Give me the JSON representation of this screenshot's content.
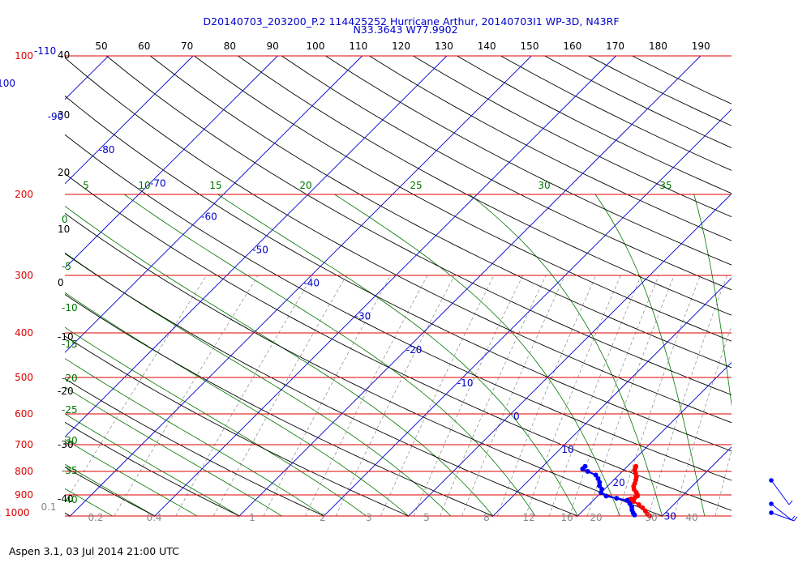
{
  "chart_data": {
    "type": "line",
    "subtype": "skew-T log-P thermodynamic diagram",
    "title_line1": "D20140703_203200_P.2 114425252 Hurricane Arthur, 20140703I1 WP-3D, N43RF",
    "title_line2": "N33.3643 W77.9902",
    "footer": "Aspen 3.1, 03 Jul 2014  21:00 UTC",
    "pressure_levels": [
      100,
      200,
      300,
      400,
      500,
      600,
      700,
      800,
      900,
      1000
    ],
    "pressure_extra_label": "-110",
    "top_temperature_ticks": [
      "50",
      "60",
      "70",
      "80",
      "90",
      "100",
      "110",
      "120",
      "130",
      "140",
      "150",
      "160",
      "170",
      "180",
      "190"
    ],
    "left_temperature_labels": [
      "40",
      "30",
      "20",
      "10",
      "0",
      "-10",
      "-20",
      "-30",
      "-40"
    ],
    "isotherm_labels": [
      {
        "v": -100,
        "text": "-100"
      },
      {
        "v": -90,
        "text": "-90"
      },
      {
        "v": -80,
        "text": "-80"
      },
      {
        "v": -70,
        "text": "-70"
      },
      {
        "v": -60,
        "text": "-60"
      },
      {
        "v": -50,
        "text": "-50"
      },
      {
        "v": -40,
        "text": "-40"
      },
      {
        "v": -30,
        "text": "-30"
      },
      {
        "v": -20,
        "text": "-20"
      },
      {
        "v": -10,
        "text": "-10"
      },
      {
        "v": 0,
        "text": "0"
      },
      {
        "v": 10,
        "text": "10"
      },
      {
        "v": 20,
        "text": "20"
      },
      {
        "v": 30,
        "text": "30"
      }
    ],
    "moist_adiabat_top_labels": [
      "5",
      "10",
      "15",
      "20",
      "25",
      "30",
      "35"
    ],
    "moist_adiabat_left_labels": [
      "0",
      "-5",
      "-10",
      "-15",
      "-20",
      "-25",
      "-30",
      "-35",
      "-40"
    ],
    "mixing_ratio_labels": [
      "0.1",
      "0.2",
      "0.4",
      "1",
      "2",
      "3",
      "5",
      "8",
      "12",
      "16",
      "20",
      "30",
      "40"
    ],
    "series": [
      {
        "label": "temperature",
        "color": "#ff0000",
        "points": [
          {
            "p": 780,
            "t": 21.0
          },
          {
            "p": 785,
            "t": 21.1
          },
          {
            "p": 795,
            "t": 21.3
          },
          {
            "p": 808,
            "t": 21.8
          },
          {
            "p": 822,
            "t": 22.3
          },
          {
            "p": 835,
            "t": 22.6
          },
          {
            "p": 850,
            "t": 22.9
          },
          {
            "p": 862,
            "t": 23.1
          },
          {
            "p": 875,
            "t": 23.5
          },
          {
            "p": 888,
            "t": 24.1
          },
          {
            "p": 898,
            "t": 24.5
          },
          {
            "p": 905,
            "t": 24.7
          },
          {
            "p": 912,
            "t": 24.6
          },
          {
            "p": 918,
            "t": 24.3
          },
          {
            "p": 922,
            "t": 24.1
          },
          {
            "p": 930,
            "t": 24.9
          },
          {
            "p": 945,
            "t": 25.9
          },
          {
            "p": 960,
            "t": 26.7
          },
          {
            "p": 975,
            "t": 27.4
          },
          {
            "p": 990,
            "t": 28.0
          },
          {
            "p": 1000,
            "t": 28.5
          }
        ]
      },
      {
        "label": "dewpoint",
        "color": "#0000ff",
        "points": [
          {
            "p": 780,
            "t": 15.0
          },
          {
            "p": 790,
            "t": 15.0
          },
          {
            "p": 800,
            "t": 15.9
          },
          {
            "p": 815,
            "t": 17.3
          },
          {
            "p": 830,
            "t": 18.0
          },
          {
            "p": 845,
            "t": 18.6
          },
          {
            "p": 860,
            "t": 19.0
          },
          {
            "p": 875,
            "t": 19.7
          },
          {
            "p": 890,
            "t": 20.0
          },
          {
            "p": 905,
            "t": 21.0
          },
          {
            "p": 915,
            "t": 22.5
          },
          {
            "p": 925,
            "t": 24.0
          },
          {
            "p": 940,
            "t": 24.7
          },
          {
            "p": 955,
            "t": 25.3
          },
          {
            "p": 970,
            "t": 25.7
          },
          {
            "p": 985,
            "t": 26.2
          },
          {
            "p": 995,
            "t": 26.6
          }
        ]
      }
    ],
    "wind_barbs": [
      {
        "p": 850
      },
      {
        "p": 925
      },
      {
        "p": 950
      }
    ],
    "colors": {
      "isobar": "#dd0000",
      "isotherm": "#0000cc",
      "dry_adiabat": "#000000",
      "moist_adiabat": "#007700",
      "mixing_ratio": "#888888",
      "pressure_label": "#dd0000",
      "title": "#0000cc"
    }
  }
}
